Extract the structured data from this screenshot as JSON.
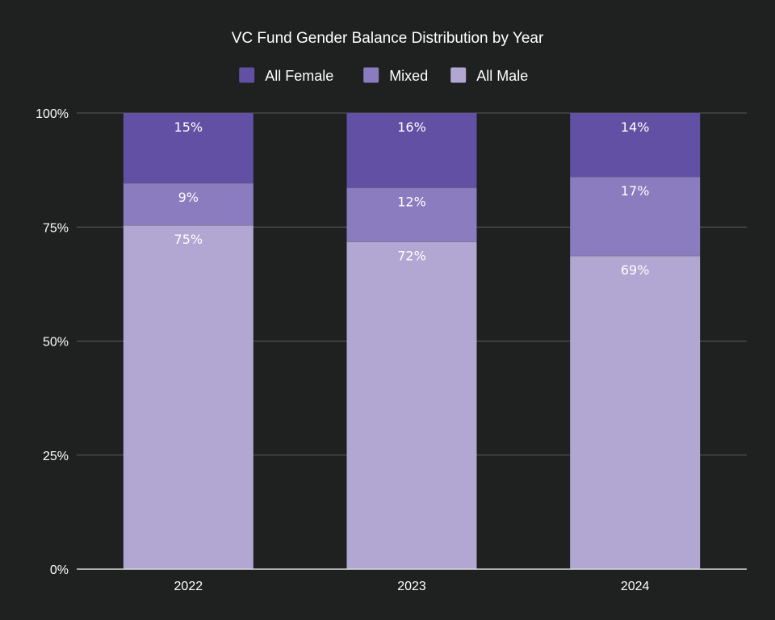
{
  "chart_data": {
    "type": "bar",
    "stacked": true,
    "title": "VC Fund Gender Balance Distribution by Year",
    "xlabel": "",
    "ylabel": "",
    "categories": [
      "2022",
      "2023",
      "2024"
    ],
    "ylim": [
      0,
      100
    ],
    "yticks": [
      0,
      25,
      50,
      75,
      100
    ],
    "ytick_labels": [
      "0%",
      "25%",
      "50%",
      "75%",
      "100%"
    ],
    "grid": true,
    "legend_position": "top-center",
    "series": [
      {
        "name": "All Male",
        "color": "#b2a6d3",
        "values": [
          75.4,
          71.8,
          68.7
        ],
        "labels": [
          "75%",
          "72%",
          "69%"
        ]
      },
      {
        "name": "Mixed",
        "color": "#8a7cbf",
        "values": [
          9.2,
          11.8,
          17.3
        ],
        "labels": [
          "9%",
          "12%",
          "17%"
        ]
      },
      {
        "name": "All Female",
        "color": "#6150a3",
        "values": [
          15.4,
          16.4,
          14.0
        ],
        "labels": [
          "15%",
          "16%",
          "14%"
        ]
      }
    ],
    "legend_order": [
      "All Female",
      "Mixed",
      "All Male"
    ]
  }
}
